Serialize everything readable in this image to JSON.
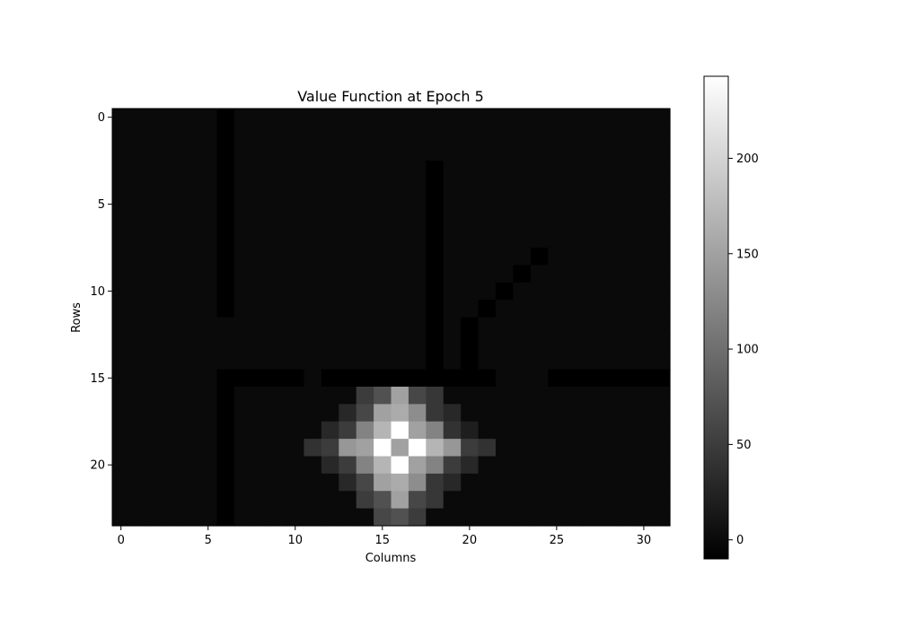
{
  "chart_data": {
    "type": "heatmap",
    "title": "Value Function at Epoch 5",
    "xlabel": "Columns",
    "ylabel": "Rows",
    "rows": 24,
    "cols": 32,
    "x_ticks": [
      0,
      5,
      10,
      15,
      20,
      25,
      30
    ],
    "y_ticks": [
      0,
      5,
      10,
      15,
      20
    ],
    "colormap": "gray",
    "vmin": -10,
    "vmax": 243,
    "colorbar_ticks": [
      0,
      50,
      100,
      150,
      200
    ],
    "background_value": 0,
    "wall_value": -10,
    "walls": [
      {
        "row_start": 0,
        "row_end": 11,
        "col_start": 6,
        "col_end": 6
      },
      {
        "row_start": 15,
        "row_end": 23,
        "col_start": 6,
        "col_end": 6
      },
      {
        "row_start": 15,
        "row_end": 15,
        "col_start": 6,
        "col_end": 10
      },
      {
        "row_start": 15,
        "row_end": 15,
        "col_start": 12,
        "col_end": 21
      },
      {
        "row_start": 15,
        "row_end": 15,
        "col_start": 25,
        "col_end": 31
      },
      {
        "row_start": 3,
        "row_end": 15,
        "col_start": 18,
        "col_end": 18
      },
      {
        "row_start": 12,
        "row_end": 14,
        "col_start": 20,
        "col_end": 20
      },
      {
        "row_start": 11,
        "row_end": 11,
        "col_start": 21,
        "col_end": 21
      },
      {
        "row_start": 10,
        "row_end": 10,
        "col_start": 22,
        "col_end": 22
      },
      {
        "row_start": 9,
        "row_end": 9,
        "col_start": 23,
        "col_end": 23
      },
      {
        "row_start": 8,
        "row_end": 8,
        "col_start": 24,
        "col_end": 24
      }
    ],
    "hotspot_cells": [
      [
        16,
        14,
        50
      ],
      [
        16,
        15,
        70
      ],
      [
        16,
        16,
        150
      ],
      [
        16,
        17,
        60
      ],
      [
        16,
        18,
        45
      ],
      [
        17,
        13,
        30
      ],
      [
        17,
        14,
        60
      ],
      [
        17,
        15,
        150
      ],
      [
        17,
        16,
        160
      ],
      [
        17,
        17,
        130
      ],
      [
        17,
        18,
        45
      ],
      [
        17,
        19,
        30
      ],
      [
        18,
        12,
        30
      ],
      [
        18,
        13,
        50
      ],
      [
        18,
        14,
        120
      ],
      [
        18,
        15,
        170
      ],
      [
        18,
        16,
        243
      ],
      [
        18,
        17,
        150
      ],
      [
        18,
        18,
        120
      ],
      [
        18,
        19,
        40
      ],
      [
        18,
        20,
        20
      ],
      [
        19,
        11,
        40
      ],
      [
        19,
        12,
        50
      ],
      [
        19,
        13,
        140
      ],
      [
        19,
        14,
        150
      ],
      [
        19,
        15,
        243
      ],
      [
        19,
        16,
        150
      ],
      [
        19,
        17,
        243
      ],
      [
        19,
        18,
        170
      ],
      [
        19,
        19,
        140
      ],
      [
        19,
        20,
        50
      ],
      [
        19,
        21,
        40
      ],
      [
        20,
        12,
        30
      ],
      [
        20,
        13,
        50
      ],
      [
        20,
        14,
        120
      ],
      [
        20,
        15,
        170
      ],
      [
        20,
        16,
        243
      ],
      [
        20,
        17,
        150
      ],
      [
        20,
        18,
        120
      ],
      [
        20,
        19,
        50
      ],
      [
        20,
        20,
        30
      ],
      [
        21,
        13,
        30
      ],
      [
        21,
        14,
        60
      ],
      [
        21,
        15,
        150
      ],
      [
        21,
        16,
        160
      ],
      [
        21,
        17,
        130
      ],
      [
        21,
        18,
        45
      ],
      [
        21,
        19,
        30
      ],
      [
        22,
        14,
        50
      ],
      [
        22,
        15,
        70
      ],
      [
        22,
        16,
        150
      ],
      [
        22,
        17,
        60
      ],
      [
        22,
        18,
        45
      ],
      [
        23,
        15,
        60
      ],
      [
        23,
        16,
        70
      ],
      [
        23,
        17,
        50
      ]
    ]
  }
}
